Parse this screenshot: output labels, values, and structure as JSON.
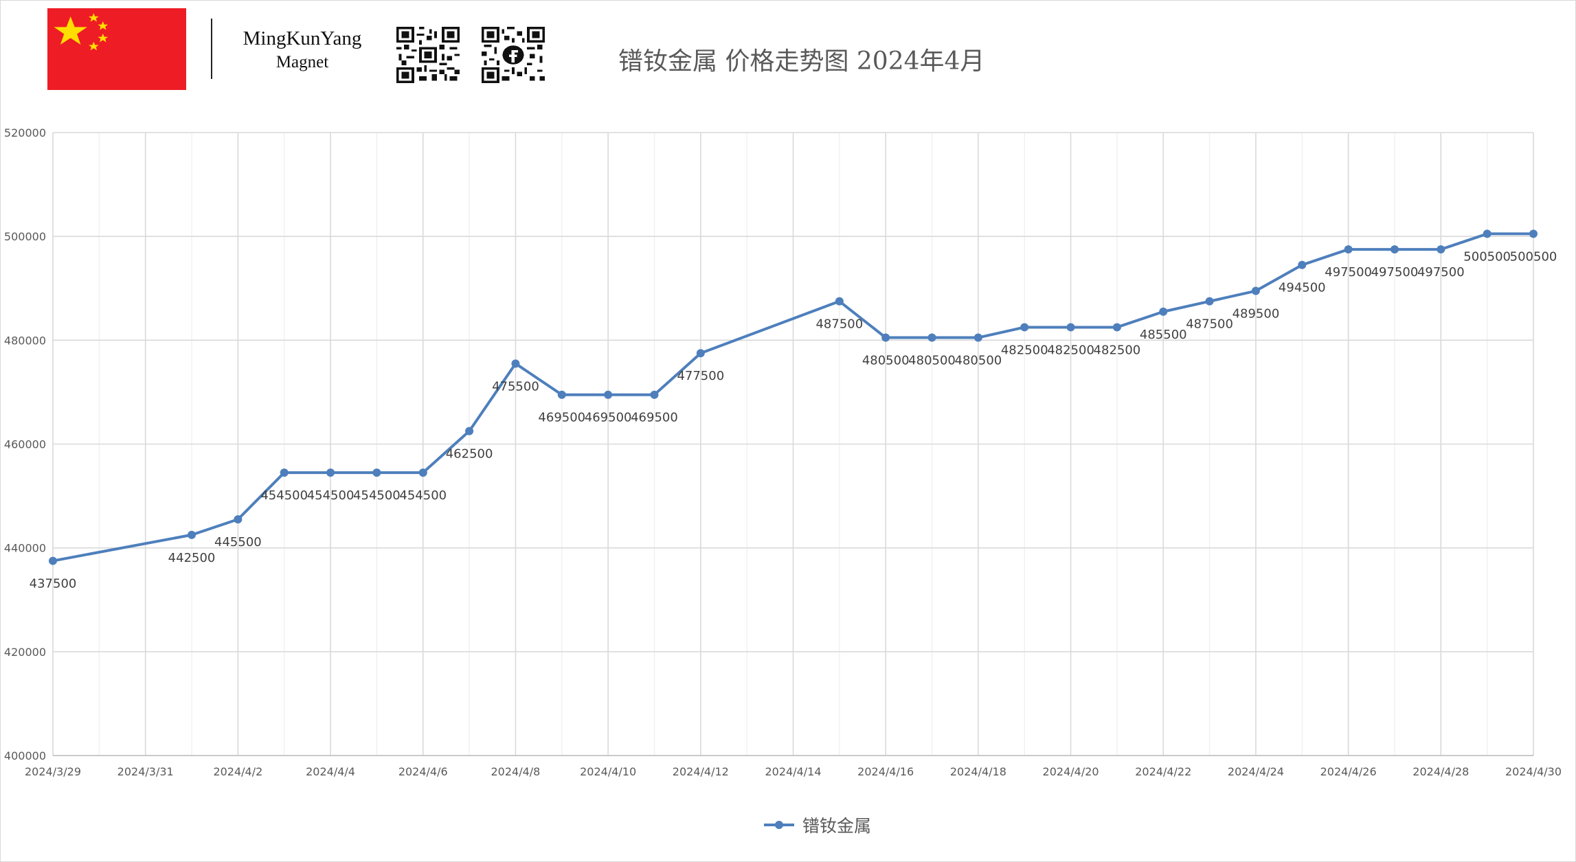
{
  "header": {
    "brand_name": "MingKunYang",
    "brand_sub": "Magnet",
    "title": "镨钕金属  价格走势图 2024年4月"
  },
  "colors": {
    "series": "#4e7fbc",
    "flag_red": "#ee1c25",
    "flag_yellow": "#ffde00",
    "grid": "#d9d9d9",
    "text": "#595959"
  },
  "icons": [
    "china-flag-icon",
    "qr-code-icon",
    "qr-code-facebook-icon"
  ],
  "chart_data": {
    "type": "line",
    "title": "镨钕金属  价格走势图 2024年4月",
    "xlabel": "",
    "ylabel": "",
    "ylim": [
      400000,
      520000
    ],
    "yticks": [
      400000,
      420000,
      440000,
      460000,
      480000,
      500000,
      520000
    ],
    "xlim": [
      "2024-03-29",
      "2024-04-30"
    ],
    "xtick_labels": [
      "2024/3/29",
      "2024/3/31",
      "2024/4/2",
      "2024/4/4",
      "2024/4/6",
      "2024/4/8",
      "2024/4/10",
      "2024/4/12",
      "2024/4/14",
      "2024/4/16",
      "2024/4/18",
      "2024/4/20",
      "2024/4/22",
      "2024/4/24",
      "2024/4/26",
      "2024/4/28",
      "2024/4/30"
    ],
    "grid": true,
    "legend": "bottom",
    "series": [
      {
        "name": "镨钕金属",
        "x": [
          "2024-03-29",
          "2024-04-01",
          "2024-04-02",
          "2024-04-03",
          "2024-04-04",
          "2024-04-05",
          "2024-04-06",
          "2024-04-07",
          "2024-04-08",
          "2024-04-09",
          "2024-04-10",
          "2024-04-11",
          "2024-04-12",
          "2024-04-15",
          "2024-04-16",
          "2024-04-17",
          "2024-04-18",
          "2024-04-19",
          "2024-04-20",
          "2024-04-21",
          "2024-04-22",
          "2024-04-23",
          "2024-04-24",
          "2024-04-25",
          "2024-04-26",
          "2024-04-27",
          "2024-04-28",
          "2024-04-29",
          "2024-04-30"
        ],
        "values": [
          437500,
          442500,
          445500,
          454500,
          454500,
          454500,
          454500,
          462500,
          475500,
          469500,
          469500,
          469500,
          477500,
          487500,
          480500,
          480500,
          480500,
          482500,
          482500,
          482500,
          485500,
          487500,
          489500,
          494500,
          497500,
          497500,
          497500,
          500500,
          500500
        ]
      }
    ]
  }
}
